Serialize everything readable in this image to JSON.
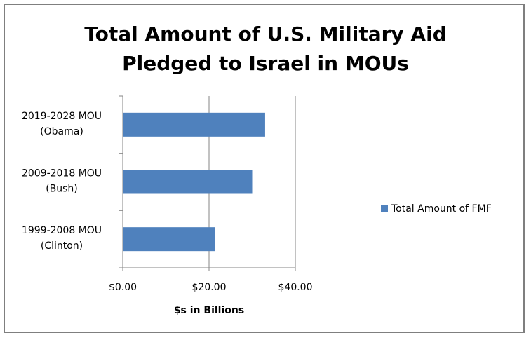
{
  "chart_data": {
    "type": "bar",
    "orientation": "horizontal",
    "title": "Total Amount of U.S. Military Aid Pledged to Israel in MOUs",
    "categories": [
      [
        "1999-2008 MOU",
        "(Clinton)"
      ],
      [
        "2009-2018 MOU",
        "(Bush)"
      ],
      [
        "2019-2028 MOU",
        "(Obama)"
      ]
    ],
    "series": [
      {
        "name": "Total Amount of FMF",
        "color": "#4f81bd",
        "values": [
          21.3,
          30.0,
          33.0
        ]
      }
    ],
    "xlabel": "$s in Billions",
    "ylabel": "",
    "xlim": [
      0,
      40
    ],
    "xticks": [
      0,
      20,
      40
    ],
    "xtick_labels": [
      "$0.00",
      "$20.00",
      "$40.00"
    ],
    "grid": "vertical major gridlines",
    "legend": "right"
  }
}
